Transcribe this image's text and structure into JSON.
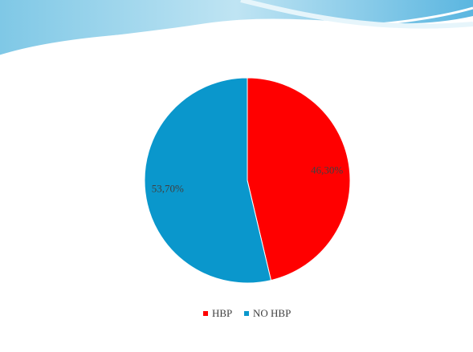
{
  "chart_data": {
    "type": "pie",
    "categories": [
      "HBP",
      "NO HBP"
    ],
    "values": [
      46.3,
      53.7
    ],
    "value_labels": [
      "46,30%",
      "53,70%"
    ],
    "colors": [
      "#ff0000",
      "#0a97cc"
    ],
    "legend": "bottom"
  }
}
